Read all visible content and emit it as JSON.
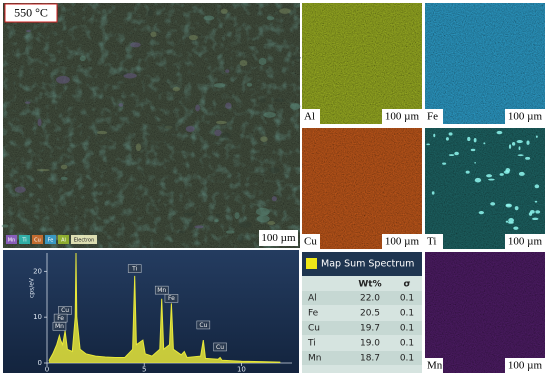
{
  "main_image": {
    "label": "550 °C",
    "scale": "100 µm",
    "color": "#44503f",
    "legend": [
      {
        "label": "Mn",
        "color": "#9060c8"
      },
      {
        "label": "Ti",
        "color": "#30b8b0"
      },
      {
        "label": "Cu",
        "color": "#d07030"
      },
      {
        "label": "Fe",
        "color": "#3aa0d0"
      },
      {
        "label": "Al",
        "color": "#98b830"
      },
      {
        "label": "Electron",
        "color": "#f0f0c0"
      }
    ]
  },
  "maps": [
    {
      "element": "Al",
      "scale": "100 µm",
      "color": "#9aae22"
    },
    {
      "element": "Fe",
      "scale": "100 µm",
      "color": "#2c9cc8"
    },
    {
      "element": "Cu",
      "scale": "100 µm",
      "color": "#c2581a"
    },
    {
      "element": "Ti",
      "scale": "100 µm",
      "color": "#1d6464"
    },
    {
      "element": "Mn",
      "scale": "100 µm",
      "color": "#4e1c66"
    }
  ],
  "chart_data": {
    "type": "line",
    "ylabel": "cps/eV",
    "color": "#e8e83a",
    "x": [
      0.1,
      0.3,
      0.5,
      0.64,
      0.7,
      0.8,
      0.93,
      1.05,
      1.3,
      1.45,
      1.49,
      1.53,
      1.7,
      2.0,
      2.5,
      3.0,
      3.5,
      4.0,
      4.4,
      4.51,
      4.6,
      4.93,
      5.05,
      5.4,
      5.8,
      5.9,
      6.0,
      6.3,
      6.4,
      6.5,
      6.9,
      7.06,
      7.2,
      7.9,
      8.04,
      8.15,
      8.8,
      8.9,
      9.0,
      10.0,
      11.0,
      12.0
    ],
    "values": [
      0.5,
      2,
      4,
      6,
      5,
      4,
      7,
      3,
      2.5,
      10,
      24,
      10,
      3,
      2,
      1.5,
      1.3,
      1.2,
      1.2,
      3,
      19,
      4,
      5,
      2,
      1.5,
      3,
      14,
      3,
      4,
      13,
      3,
      1.8,
      2.5,
      1.2,
      1.5,
      5,
      1,
      0.8,
      1.2,
      0.6,
      0.4,
      0.3,
      0.2
    ],
    "xlim": [
      0,
      12.6
    ],
    "ylim": [
      0,
      24
    ],
    "xticks": [
      0,
      5,
      10
    ],
    "yticks": [
      0,
      10,
      20
    ],
    "annotations": [
      {
        "text": "Cu",
        "x": 0.93,
        "y": 11.5
      },
      {
        "text": "Fe",
        "x": 0.7,
        "y": 9.8
      },
      {
        "text": "Mn",
        "x": 0.64,
        "y": 8
      },
      {
        "text": "Ti",
        "x": 4.51,
        "y": 20.6
      },
      {
        "text": "Mn",
        "x": 5.9,
        "y": 15.9
      },
      {
        "text": "Fe",
        "x": 6.4,
        "y": 14.1
      },
      {
        "text": "Cu",
        "x": 8.04,
        "y": 8.3
      },
      {
        "text": "Cu",
        "x": 8.9,
        "y": 3.5
      }
    ]
  },
  "table": {
    "title": "Map Sum Spectrum",
    "marker_color": "#f0e818",
    "columns": [
      "Wt%",
      "σ"
    ],
    "rows": [
      [
        "Al",
        "22.0",
        "0.1"
      ],
      [
        "Fe",
        "20.5",
        "0.1"
      ],
      [
        "Cu",
        "19.7",
        "0.1"
      ],
      [
        "Ti",
        "19.0",
        "0.1"
      ],
      [
        "Mn",
        "18.7",
        "0.1"
      ]
    ]
  }
}
